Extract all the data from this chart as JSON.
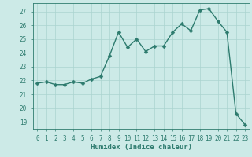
{
  "x": [
    0,
    1,
    2,
    3,
    4,
    5,
    6,
    7,
    8,
    9,
    10,
    11,
    12,
    13,
    14,
    15,
    16,
    17,
    18,
    19,
    20,
    21,
    22,
    23
  ],
  "y": [
    21.8,
    21.9,
    21.7,
    21.7,
    21.9,
    21.8,
    22.1,
    22.3,
    23.8,
    25.5,
    24.4,
    25.0,
    24.1,
    24.5,
    24.5,
    25.5,
    26.1,
    25.6,
    27.1,
    27.2,
    26.3,
    25.5,
    19.6,
    18.8
  ],
  "line_color": "#2d7b6e",
  "marker_color": "#2d7b6e",
  "bg_color": "#cceae7",
  "grid_color": "#aad4cf",
  "tick_color": "#2d7b6e",
  "xlabel": "Humidex (Indice chaleur)",
  "ylim_min": 18.5,
  "ylim_max": 27.6,
  "xlim_min": -0.5,
  "xlim_max": 23.5,
  "yticks": [
    19,
    20,
    21,
    22,
    23,
    24,
    25,
    26,
    27
  ],
  "xticks": [
    0,
    1,
    2,
    3,
    4,
    5,
    6,
    7,
    8,
    9,
    10,
    11,
    12,
    13,
    14,
    15,
    16,
    17,
    18,
    19,
    20,
    21,
    22,
    23
  ],
  "marker_size": 2.5,
  "line_width": 1.0,
  "xlabel_fontsize": 6.5,
  "tick_fontsize": 5.5
}
